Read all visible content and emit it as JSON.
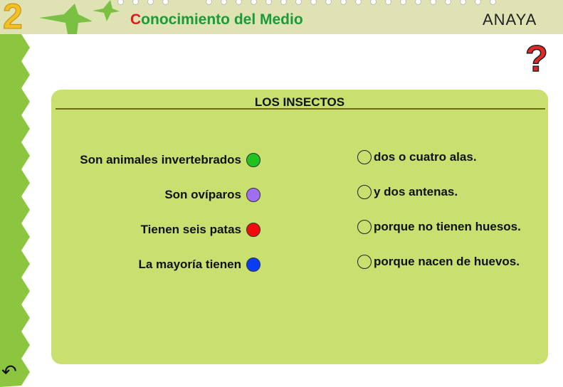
{
  "header": {
    "grade": "2",
    "title_first": "C",
    "title_rest": "onocimiento del Medio",
    "brand": "ANAYA"
  },
  "icons": {
    "help": "question-mark-icon",
    "back": "back-arrow-icon"
  },
  "help_glyph": "?",
  "back_glyph": "↶",
  "activity": {
    "title": "LOS INSECTOS",
    "left": [
      {
        "text": "Son animales invertebrados",
        "color": "#1fc21f"
      },
      {
        "text": "Son ovíparos",
        "color": "#9f6ff0"
      },
      {
        "text": "Tienen seis patas",
        "color": "#f00c0c"
      },
      {
        "text": "La mayoría tienen",
        "color": "#0a3cf5"
      }
    ],
    "right": [
      {
        "text": "dos o cuatro alas."
      },
      {
        "text": "y dos antenas."
      },
      {
        "text": "porque no tienen huesos."
      },
      {
        "text": "porque nacen de huevos."
      }
    ]
  },
  "colors": {
    "panel": "#c8e070",
    "sidebar": "#8cc63f",
    "header": "#dfe3b4"
  }
}
